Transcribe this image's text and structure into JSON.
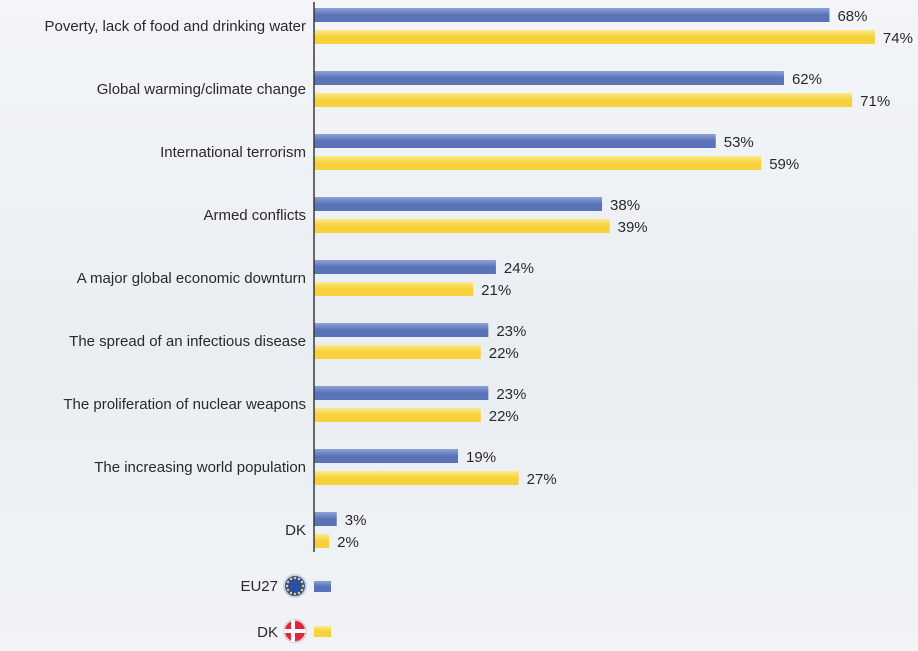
{
  "colors": {
    "eu27": "#5a73b8",
    "eu27_light": "#8ea1d6",
    "dk": "#f6d13a",
    "dk_light": "#fde98a",
    "text": "#2a2a2a",
    "axis": "#3a3a3a"
  },
  "legend": {
    "eu27_label": "EU27",
    "eu27_icon": "eu-flag-icon",
    "dk_label": "DK",
    "dk_icon": "denmark-flag-icon"
  },
  "chart_data": {
    "type": "bar",
    "orientation": "horizontal",
    "categories": [
      "Poverty, lack of food and drinking water",
      "Global warming/climate change",
      "International terrorism",
      "Armed conflicts",
      "A major global economic downturn",
      "The spread of an infectious disease",
      "The proliferation of nuclear weapons",
      "The increasing world population",
      "DK"
    ],
    "series": [
      {
        "name": "EU27",
        "values": [
          68,
          62,
          53,
          38,
          24,
          23,
          23,
          19,
          3
        ],
        "labels": [
          "68%",
          "62%",
          "53%",
          "38%",
          "24%",
          "23%",
          "23%",
          "19%",
          "3%"
        ]
      },
      {
        "name": "DK",
        "values": [
          74,
          71,
          59,
          39,
          21,
          22,
          22,
          27,
          2
        ],
        "labels": [
          "74%",
          "71%",
          "59%",
          "39%",
          "21%",
          "22%",
          "22%",
          "27%",
          "2%"
        ]
      }
    ],
    "xlim": [
      0,
      74
    ],
    "grid": false,
    "legend_position": "bottom-left"
  }
}
